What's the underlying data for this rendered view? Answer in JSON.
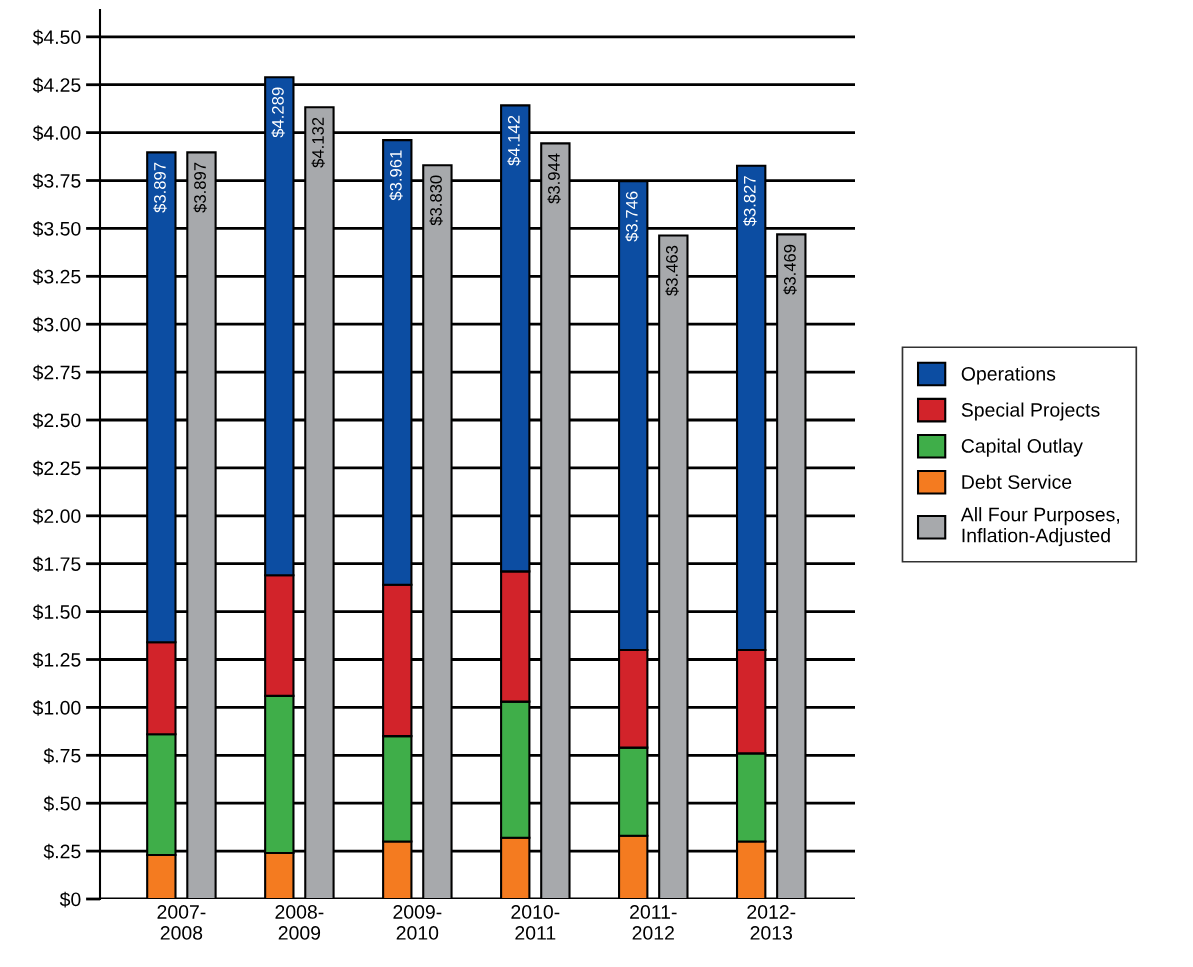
{
  "chart_data": [
    {
      "type": "bar",
      "stacked": true,
      "categories": [
        "2007-\n2008",
        "2008-\n2009",
        "2009-\n2010",
        "2010-\n2011",
        "2011-\n2012",
        "2012-\n2013"
      ],
      "series": [
        {
          "name": "Debt Service",
          "color": "#f47b20",
          "values": [
            0.23,
            0.24,
            0.3,
            0.32,
            0.33,
            0.3
          ]
        },
        {
          "name": "Capital Outlay",
          "color": "#3fae49",
          "values": [
            0.63,
            0.82,
            0.55,
            0.71,
            0.46,
            0.46
          ]
        },
        {
          "name": "Special Projects",
          "color": "#d2232a",
          "values": [
            0.48,
            0.63,
            0.79,
            0.68,
            0.51,
            0.54
          ]
        },
        {
          "name": "Operations",
          "color": "#0c4da2",
          "values": [
            2.557,
            2.599,
            2.321,
            2.432,
            2.446,
            2.527
          ]
        }
      ],
      "totals": [
        "$3.897",
        "$4.289",
        "$3.961",
        "$4.142",
        "$3.746",
        "$3.827"
      ],
      "ylim": [
        0,
        4.64
      ],
      "yticks": [
        {
          "value": 0,
          "label": "$0"
        },
        {
          "value": 0.25,
          "label": "$.25"
        },
        {
          "value": 0.5,
          "label": "$.50"
        },
        {
          "value": 0.75,
          "label": "$.75"
        },
        {
          "value": 1.0,
          "label": "$1.00"
        },
        {
          "value": 1.25,
          "label": "$1.25"
        },
        {
          "value": 1.5,
          "label": "$1.50"
        },
        {
          "value": 1.75,
          "label": "$1.75"
        },
        {
          "value": 2.0,
          "label": "$2.00"
        },
        {
          "value": 2.25,
          "label": "$2.25"
        },
        {
          "value": 2.5,
          "label": "$2.50"
        },
        {
          "value": 2.75,
          "label": "$2.75"
        },
        {
          "value": 3.0,
          "label": "$3.00"
        },
        {
          "value": 3.25,
          "label": "$3.25"
        },
        {
          "value": 3.5,
          "label": "$3.50"
        },
        {
          "value": 3.75,
          "label": "$3.75"
        },
        {
          "value": 4.0,
          "label": "$4.00"
        },
        {
          "value": 4.25,
          "label": "$4.25"
        },
        {
          "value": 4.5,
          "label": "$4.50"
        }
      ],
      "grid": "y",
      "legend": "right"
    },
    {
      "type": "bar",
      "categories": [
        null,
        null,
        null,
        null,
        null,
        null
      ],
      "series": [
        {
          "name": "All Four Purposes,\nInflation-Adjusted",
          "color": "#a7a9ac",
          "values": [
            3.897,
            4.132,
            3.83,
            3.944,
            3.463,
            3.469
          ],
          "value_labels": [
            "$3.897",
            "$4.132",
            "$3.830",
            "$3.944",
            "$3.463",
            "$3.469"
          ]
        }
      ],
      "ylim": [
        0,
        4.64
      ],
      "tick_labels": false,
      "legend": "right"
    }
  ]
}
